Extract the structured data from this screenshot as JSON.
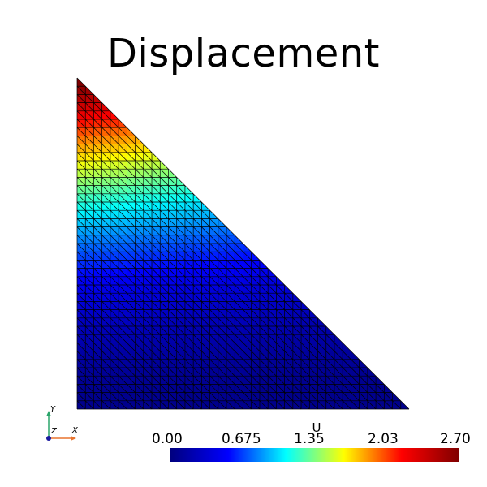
{
  "title": "Displacement",
  "colorbar": {
    "label": "U",
    "min": 0.0,
    "max": 2.7,
    "ticks": [
      "0.00",
      "0.675",
      "1.35",
      "2.03",
      "2.70"
    ],
    "colors": [
      "#00007f",
      "#0000ff",
      "#00ffff",
      "#ffff00",
      "#ff0000",
      "#7f0000"
    ]
  },
  "axes": {
    "x": "X",
    "y": "Y",
    "z": "Z",
    "x_color": "#e8742f",
    "y_color": "#2aa56a",
    "z_color": "#1a1aa0"
  },
  "mesh": {
    "divisions": 40,
    "shape": "right-triangle",
    "line_color": "#000000"
  }
}
